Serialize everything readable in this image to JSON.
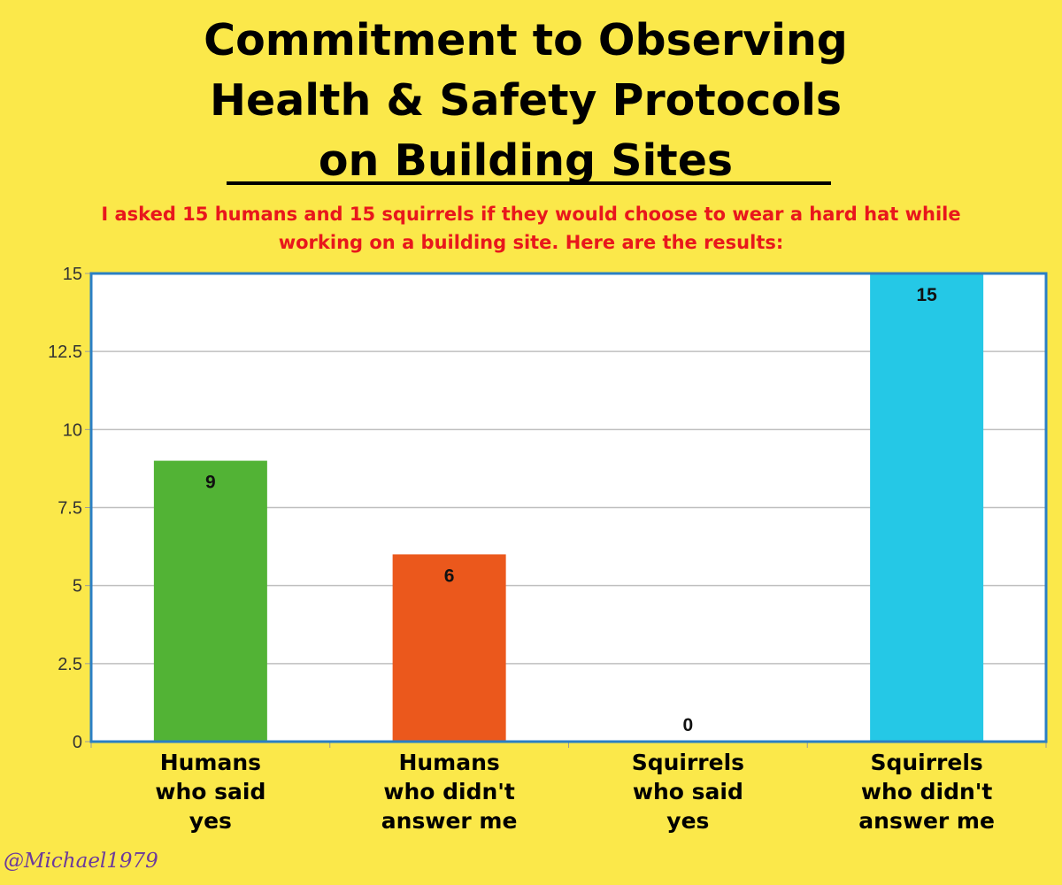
{
  "title_lines": [
    "Commitment to Observing",
    "Health & Safety Protocols",
    "on Building Sites"
  ],
  "subtitle_lines": [
    "I asked 15 humans and 15 squirrels if they would choose to wear a hard hat while",
    "working on a building site. Here are the results:"
  ],
  "handle": "@Michael1979",
  "chart_data": {
    "type": "bar",
    "categories": [
      [
        "Humans",
        "who said",
        "yes"
      ],
      [
        "Humans",
        "who didn't",
        "answer me"
      ],
      [
        "Squirrels",
        "who said",
        "yes"
      ],
      [
        "Squirrels",
        "who didn't",
        "answer me"
      ]
    ],
    "values": [
      9,
      6,
      0,
      15
    ],
    "data_labels": [
      "9",
      "6",
      "0",
      "15"
    ],
    "colors": [
      "#52b335",
      "#eb581c",
      "#f2a01e",
      "#25c8e6"
    ],
    "ylim": [
      0,
      15
    ],
    "yticks": [
      "0",
      "2.5",
      "5",
      "7.5",
      "10",
      "12.5",
      "15"
    ],
    "grid": true,
    "title": "",
    "xlabel": "",
    "ylabel": ""
  },
  "colors": {
    "background": "#fbe84a",
    "plot_background": "#ffffff",
    "plot_border": "#2a7fc4",
    "title": "#000000",
    "subtitle": "#e8171c",
    "handle": "#6b3a9c"
  }
}
